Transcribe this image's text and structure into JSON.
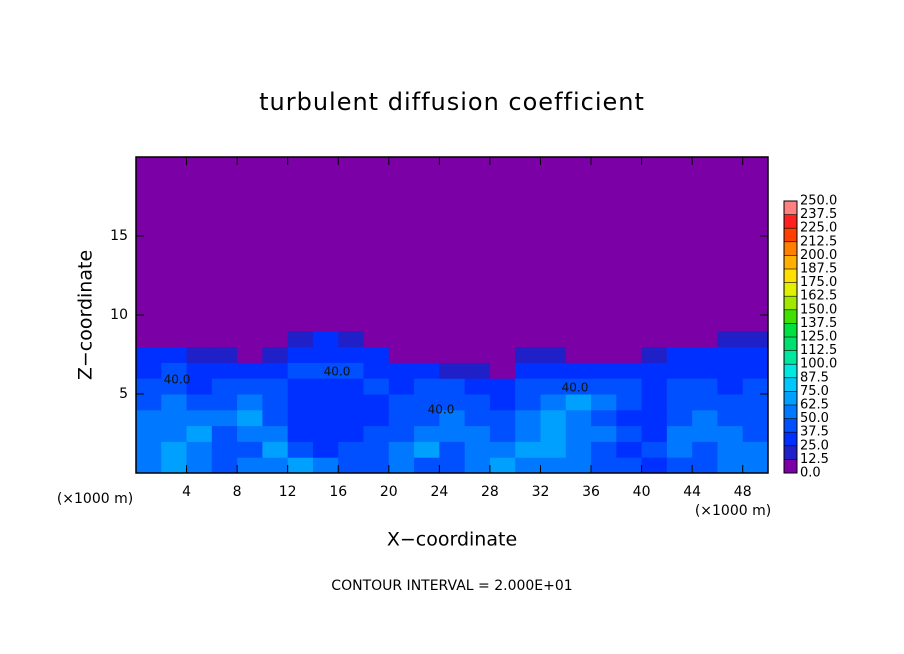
{
  "chart_data": {
    "type": "heatmap",
    "title": "turbulent diffusion coefficient",
    "xlabel": "X−coordinate",
    "ylabel": "Z−coordinate",
    "x_unit": "(×1000 m)",
    "x_unit_right": "(×1000 m)",
    "footer": "CONTOUR INTERVAL = 2.000E+01",
    "contour_labels": [
      "40.0",
      "40.0",
      "40.0",
      "40.0"
    ],
    "xlim": [
      0,
      50
    ],
    "ylim": [
      0,
      20
    ],
    "xticks": [
      4,
      8,
      12,
      16,
      20,
      24,
      28,
      32,
      36,
      40,
      44,
      48
    ],
    "yticks": [
      5,
      10,
      15
    ],
    "xbins": [
      0,
      2,
      4,
      6,
      8,
      10,
      12,
      14,
      16,
      18,
      20,
      22,
      24,
      26,
      28,
      30,
      32,
      34,
      36,
      38,
      40,
      42,
      44,
      46,
      48,
      50
    ],
    "ybins": [
      0,
      1,
      2,
      3,
      4,
      5,
      6,
      7,
      8,
      9,
      20
    ],
    "z": [
      [
        62,
        70,
        55,
        45,
        50,
        60,
        65,
        50,
        45,
        40,
        55,
        45,
        40,
        60,
        70,
        50,
        55,
        60,
        45,
        40,
        35,
        45,
        40,
        55,
        50
      ],
      [
        55,
        65,
        60,
        40,
        45,
        70,
        45,
        35,
        40,
        45,
        50,
        65,
        45,
        55,
        60,
        65,
        70,
        55,
        40,
        35,
        40,
        55,
        45,
        60,
        55
      ],
      [
        60,
        55,
        65,
        45,
        55,
        50,
        35,
        30,
        35,
        40,
        45,
        55,
        60,
        50,
        45,
        60,
        65,
        60,
        50,
        40,
        30,
        50,
        60,
        50,
        45
      ],
      [
        50,
        60,
        55,
        50,
        65,
        40,
        30,
        30,
        30,
        35,
        40,
        45,
        55,
        45,
        40,
        55,
        70,
        60,
        45,
        35,
        30,
        45,
        55,
        45,
        40
      ],
      [
        45,
        50,
        40,
        45,
        50,
        40,
        35,
        30,
        30,
        35,
        40,
        40,
        45,
        40,
        35,
        45,
        60,
        65,
        50,
        40,
        35,
        40,
        45,
        40,
        45
      ],
      [
        40,
        45,
        35,
        40,
        45,
        40,
        35,
        35,
        35,
        40,
        35,
        40,
        40,
        35,
        30,
        40,
        45,
        40,
        45,
        40,
        35,
        40,
        40,
        35,
        40
      ],
      [
        35,
        40,
        30,
        35,
        35,
        35,
        40,
        40,
        40,
        35,
        30,
        25,
        20,
        15,
        10,
        35,
        30,
        25,
        30,
        35,
        30,
        35,
        35,
        30,
        35
      ],
      [
        30,
        30,
        20,
        15,
        10,
        20,
        35,
        35,
        35,
        25,
        10,
        5,
        5,
        5,
        5,
        20,
        15,
        5,
        5,
        10,
        20,
        30,
        30,
        25,
        30
      ],
      [
        5,
        5,
        0,
        0,
        0,
        5,
        20,
        25,
        20,
        5,
        0,
        0,
        0,
        0,
        0,
        0,
        0,
        0,
        0,
        0,
        0,
        5,
        10,
        15,
        20
      ],
      [
        0,
        0,
        0,
        0,
        0,
        0,
        0,
        0,
        0,
        0,
        0,
        0,
        0,
        0,
        0,
        0,
        0,
        0,
        0,
        0,
        0,
        0,
        0,
        0,
        0
      ]
    ],
    "colorbar_ticks": [
      {
        "value": 0,
        "label": "0.0"
      },
      {
        "value": 12.5,
        "label": "12.5"
      },
      {
        "value": 25,
        "label": "25.0"
      },
      {
        "value": 37.5,
        "label": "37.5"
      },
      {
        "value": 50,
        "label": "50.0"
      },
      {
        "value": 62.5,
        "label": "62.5"
      },
      {
        "value": 75,
        "label": "75.0"
      },
      {
        "value": 87.5,
        "label": "87.5"
      },
      {
        "value": 100,
        "label": "100.0"
      },
      {
        "value": 112.5,
        "label": "112.5"
      },
      {
        "value": 125,
        "label": "125.0"
      },
      {
        "value": 137.5,
        "label": "137.5"
      },
      {
        "value": 150,
        "label": "150.0"
      },
      {
        "value": 162.5,
        "label": "162.5"
      },
      {
        "value": 175,
        "label": "175.0"
      },
      {
        "value": 187.5,
        "label": "187.5"
      },
      {
        "value": 200,
        "label": "200.0"
      },
      {
        "value": 212.5,
        "label": "212.5"
      },
      {
        "value": 225,
        "label": "225.0"
      },
      {
        "value": 237.5,
        "label": "237.5"
      },
      {
        "value": 250,
        "label": "250.0"
      }
    ],
    "colors": [
      "#7b00a6",
      "#2020c8",
      "#0030ff",
      "#0050ff",
      "#0078ff",
      "#00a0ff",
      "#00c8ff",
      "#00e8e0",
      "#00e8a0",
      "#00e070",
      "#00e040",
      "#40e000",
      "#a0e800",
      "#e0f000",
      "#ffe000",
      "#ffb000",
      "#ff8000",
      "#ff4000",
      "#ff2020",
      "#ff8080"
    ]
  }
}
